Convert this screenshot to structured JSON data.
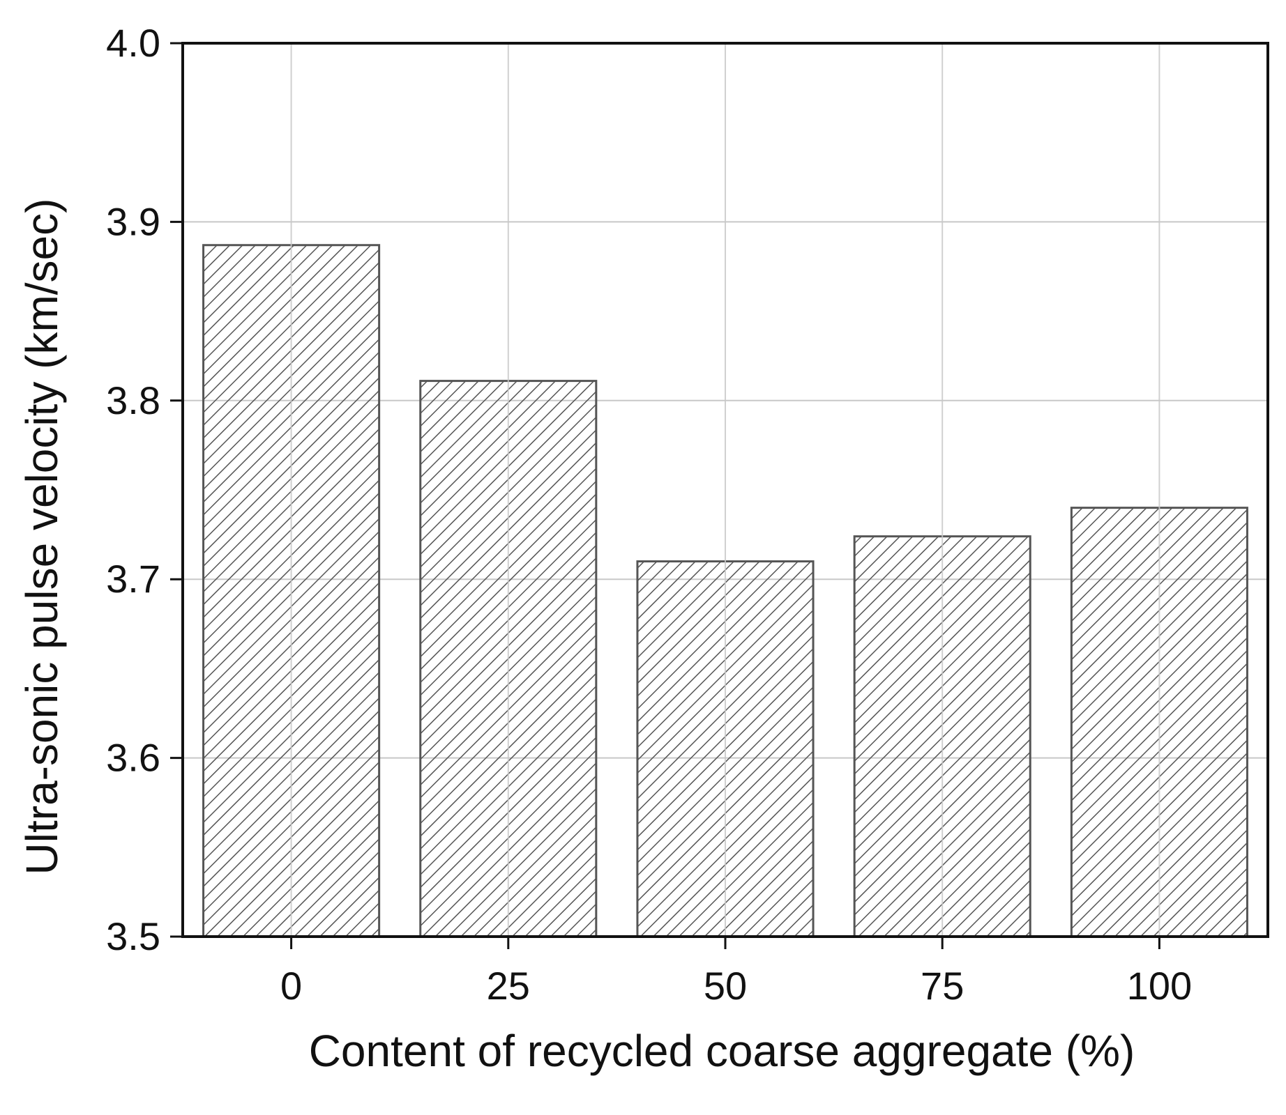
{
  "chart_data": {
    "type": "bar",
    "categories": [
      "0",
      "25",
      "50",
      "75",
      "100"
    ],
    "values": [
      3.887,
      3.811,
      3.71,
      3.724,
      3.74
    ],
    "title": "",
    "xlabel": "Content of recycled coarse aggregate (%)",
    "ylabel": "Ultra-sonic pulse velocity (km/sec)",
    "ylim": [
      3.5,
      4.0
    ],
    "yticks": [
      "3.5",
      "3.6",
      "3.7",
      "3.8",
      "3.9",
      "4.0"
    ],
    "grid": true,
    "legend": "none",
    "bar_fill": "diagonal-hatch",
    "colors": {
      "bar_edge": "#555555",
      "hatch": "#555555",
      "grid": "#c8c8c8",
      "axis": "#111111"
    }
  }
}
